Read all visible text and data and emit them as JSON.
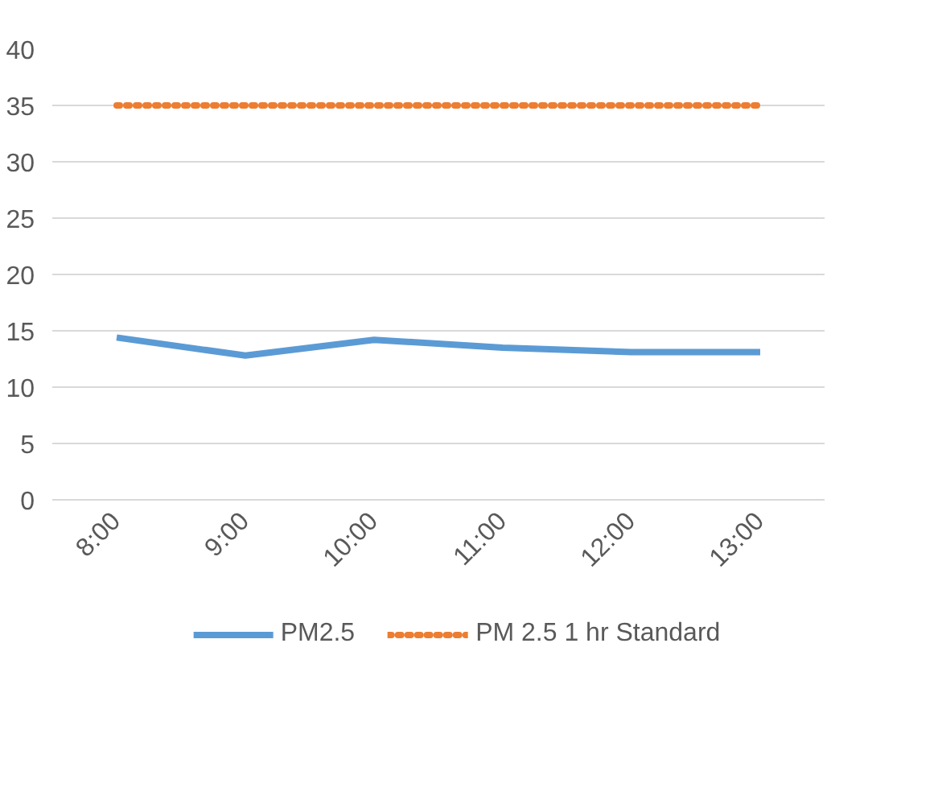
{
  "chart_data": {
    "type": "line",
    "categories": [
      "8:00",
      "9:00",
      "10:00",
      "11:00",
      "12:00",
      "13:00"
    ],
    "series": [
      {
        "name": "PM2.5",
        "color": "#5b9bd5",
        "values": [
          14.4,
          12.8,
          14.2,
          13.5,
          13.1,
          13.1
        ],
        "line_style": "solid"
      },
      {
        "name": "PM 2.5 1 hr Standard",
        "color": "#ed7d31",
        "values": [
          35,
          35,
          35,
          35,
          35,
          35
        ],
        "line_style": "dotted"
      }
    ],
    "ylim": [
      0,
      40
    ],
    "yticks": [
      0,
      5,
      10,
      15,
      20,
      25,
      30,
      35,
      40
    ],
    "grid": "y",
    "legend": "bottom"
  }
}
